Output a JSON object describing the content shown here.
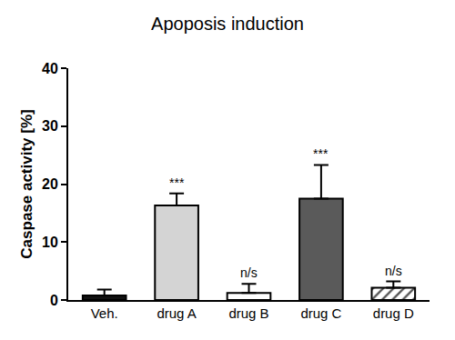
{
  "chart_data": {
    "type": "bar",
    "title": "Apoposis induction",
    "y_label": "Caspase activity [%]",
    "categories": [
      "Veh.",
      "drug A",
      "drug B",
      "drug C",
      "drug D"
    ],
    "values": [
      0.8,
      16.3,
      1.2,
      17.5,
      2.1
    ],
    "errors": [
      1.0,
      2.1,
      1.6,
      5.8,
      1.1
    ],
    "colors": [
      "#111111",
      "#d4d4d4",
      "#ffffff",
      "#5a5a5a",
      "#555555"
    ],
    "ylim": [
      0,
      40
    ],
    "yticks": [
      0,
      10,
      20,
      30,
      40
    ],
    "grid": false,
    "annotations": [
      {
        "category": "drug A",
        "text": "***"
      },
      {
        "category": "drug B",
        "text": "n/s"
      },
      {
        "category": "drug C",
        "text": "***"
      },
      {
        "category": "drug D",
        "text": "n/s"
      }
    ]
  }
}
